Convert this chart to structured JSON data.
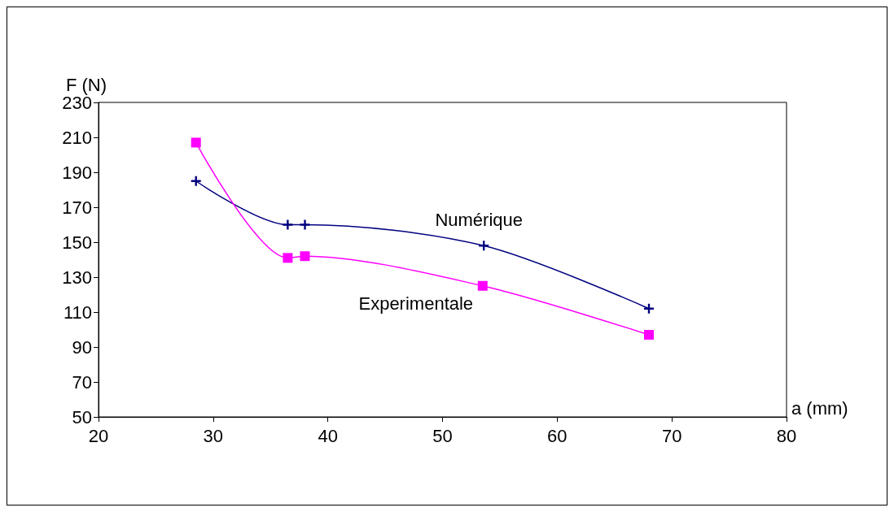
{
  "chart_data": {
    "type": "line",
    "xlabel": "a (mm)",
    "ylabel": "F (N)",
    "xlim": [
      20,
      80
    ],
    "xticks": [
      20,
      30,
      40,
      50,
      60,
      70,
      80
    ],
    "ylim": [
      50,
      230
    ],
    "yticks": [
      50,
      70,
      90,
      110,
      130,
      150,
      170,
      190,
      210,
      230
    ],
    "grid": false,
    "legend": false,
    "series": [
      {
        "name": "Numérique",
        "color": "#000080",
        "marker": "cross",
        "x": [
          28.5,
          36.5,
          38,
          53.6,
          68
        ],
        "values": [
          185,
          160,
          160,
          148,
          112
        ]
      },
      {
        "name": "Experimentale",
        "color": "#ff00ff",
        "marker": "square",
        "x": [
          28.5,
          36.5,
          38,
          53.5,
          68
        ],
        "values": [
          207,
          141,
          142,
          125,
          97
        ]
      }
    ]
  }
}
